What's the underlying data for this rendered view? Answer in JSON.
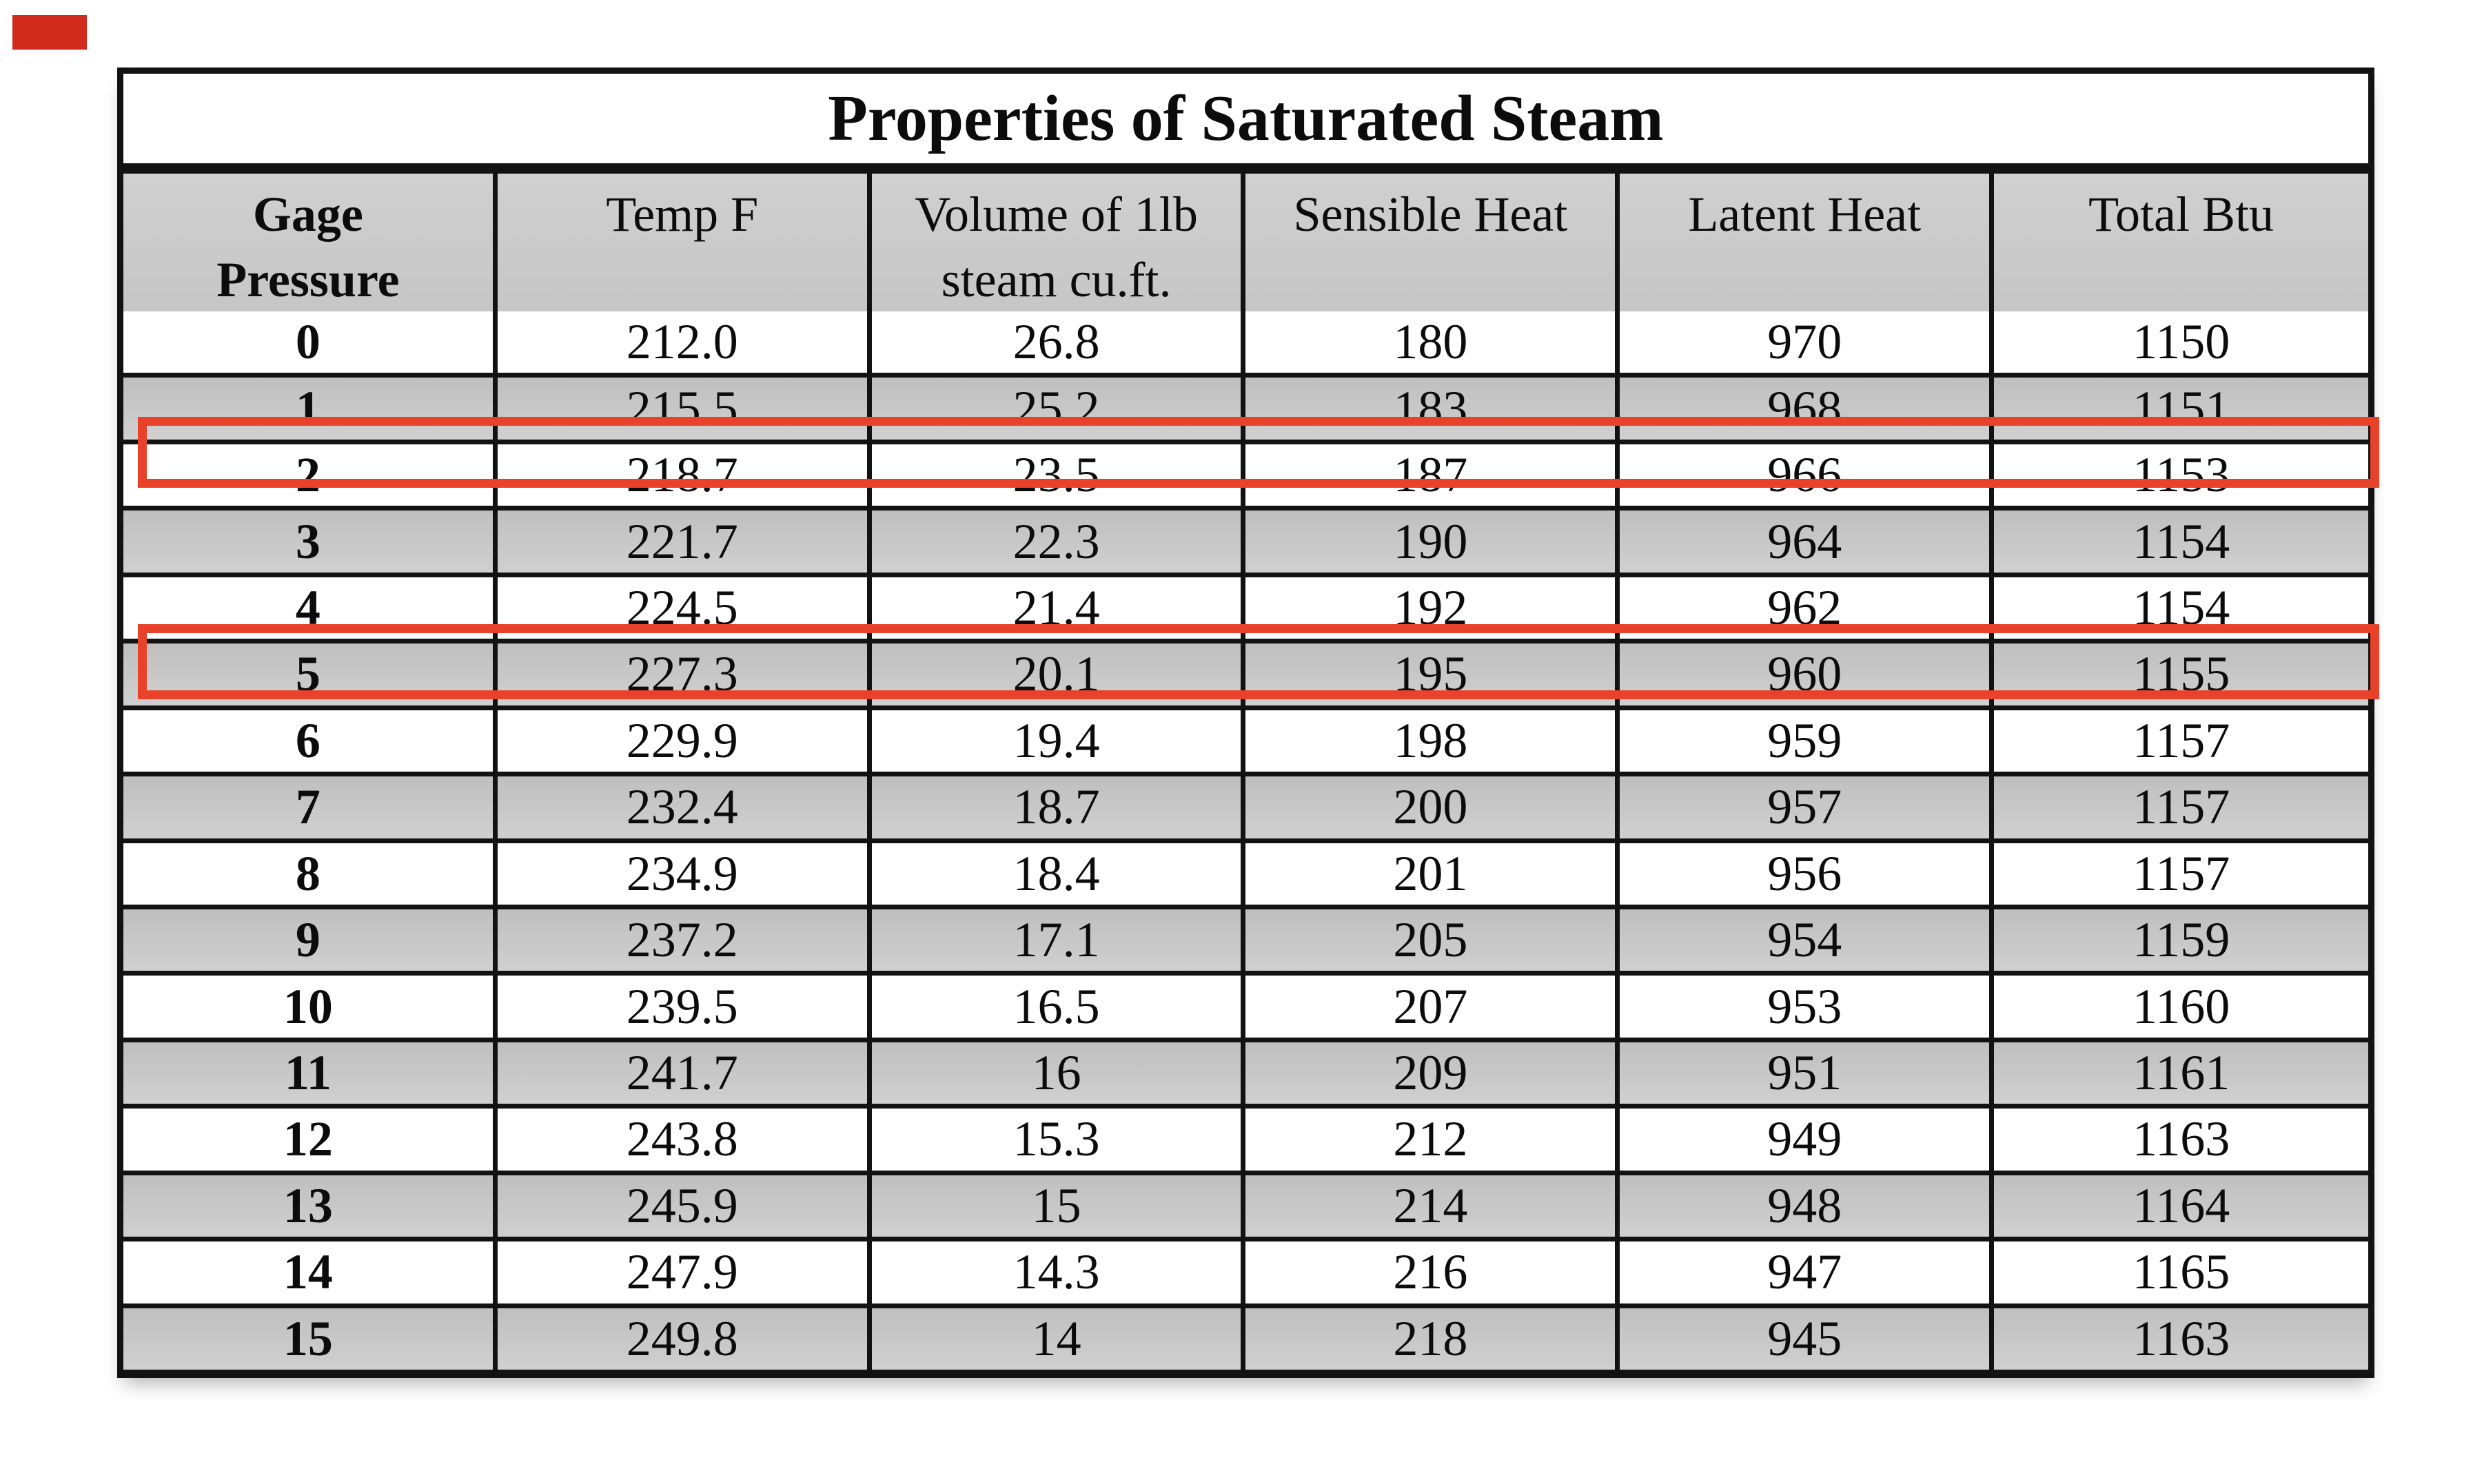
{
  "title": "Properties of Saturated Steam",
  "table": {
    "headers": [
      {
        "line1": "Gage",
        "line2": "Pressure"
      },
      {
        "line1": "Temp F",
        "line2": ""
      },
      {
        "line1": "Volume of 1lb",
        "line2": "steam cu.ft."
      },
      {
        "line1": "Sensible Heat",
        "line2": ""
      },
      {
        "line1": "Latent Heat",
        "line2": ""
      },
      {
        "line1": "Total Btu",
        "line2": ""
      }
    ],
    "rows": [
      {
        "gage": "0",
        "temp": "212.0",
        "volume": "26.8",
        "sensible": "180",
        "latent": "970",
        "total": "1150"
      },
      {
        "gage": "1",
        "temp": "215.5",
        "volume": "25.2",
        "sensible": "183",
        "latent": "968",
        "total": "1151"
      },
      {
        "gage": "2",
        "temp": "218.7",
        "volume": "23.5",
        "sensible": "187",
        "latent": "966",
        "total": "1153"
      },
      {
        "gage": "3",
        "temp": "221.7",
        "volume": "22.3",
        "sensible": "190",
        "latent": "964",
        "total": "1154"
      },
      {
        "gage": "4",
        "temp": "224.5",
        "volume": "21.4",
        "sensible": "192",
        "latent": "962",
        "total": "1154"
      },
      {
        "gage": "5",
        "temp": "227.3",
        "volume": "20.1",
        "sensible": "195",
        "latent": "960",
        "total": "1155"
      },
      {
        "gage": "6",
        "temp": "229.9",
        "volume": "19.4",
        "sensible": "198",
        "latent": "959",
        "total": "1157"
      },
      {
        "gage": "7",
        "temp": "232.4",
        "volume": "18.7",
        "sensible": "200",
        "latent": "957",
        "total": "1157"
      },
      {
        "gage": "8",
        "temp": "234.9",
        "volume": "18.4",
        "sensible": "201",
        "latent": "956",
        "total": "1157"
      },
      {
        "gage": "9",
        "temp": "237.2",
        "volume": "17.1",
        "sensible": "205",
        "latent": "954",
        "total": "1159"
      },
      {
        "gage": "10",
        "temp": "239.5",
        "volume": "16.5",
        "sensible": "207",
        "latent": "953",
        "total": "1160"
      },
      {
        "gage": "11",
        "temp": "241.7",
        "volume": "16",
        "sensible": "209",
        "latent": "951",
        "total": "1161"
      },
      {
        "gage": "12",
        "temp": "243.8",
        "volume": "15.3",
        "sensible": "212",
        "latent": "949",
        "total": "1163"
      },
      {
        "gage": "13",
        "temp": "245.9",
        "volume": "15",
        "sensible": "214",
        "latent": "948",
        "total": "1164"
      },
      {
        "gage": "14",
        "temp": "247.9",
        "volume": "14.3",
        "sensible": "216",
        "latent": "947",
        "total": "1165"
      },
      {
        "gage": "15",
        "temp": "249.8",
        "volume": "14",
        "sensible": "218",
        "latent": "945",
        "total": "1163"
      }
    ]
  },
  "annotations": {
    "highlighted_gage_pressures": [
      "2",
      "5"
    ],
    "highlight_color": "#e8432a",
    "corner_marker_color": "#cf2a1c"
  },
  "colors": {
    "row_alt_gray": "#c7c7c8",
    "header_gray": "#cbcbcc",
    "grid_black": "#121212",
    "background": "#ffffff"
  }
}
